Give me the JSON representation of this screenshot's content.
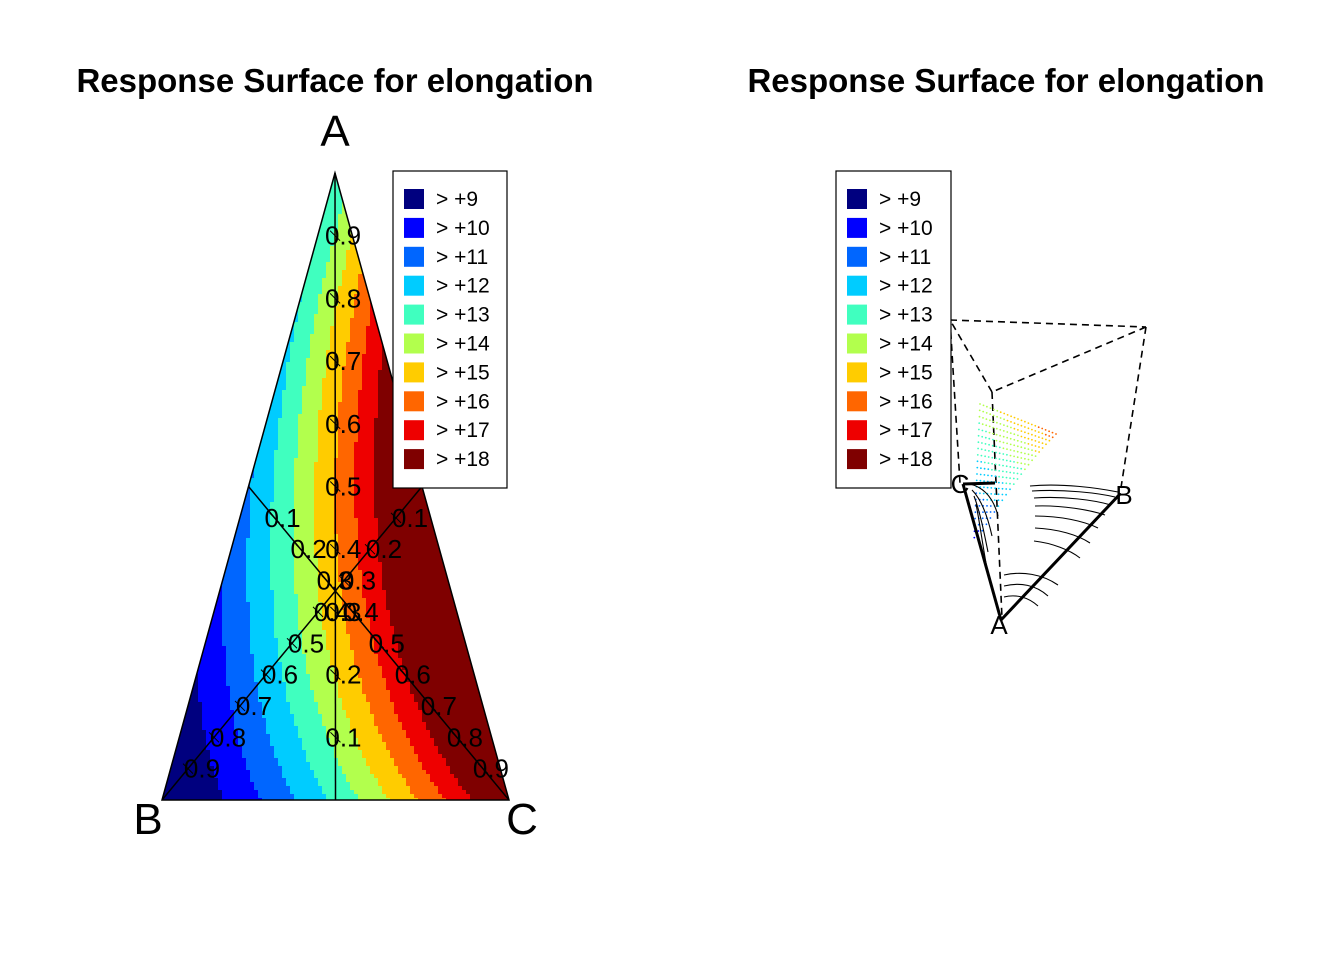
{
  "chart_data": [
    {
      "type": "ternary-contour",
      "title": "Response Surface for elongation",
      "vertices": {
        "top": "A",
        "left": "B",
        "right": "C"
      },
      "tick_labels": [
        "0.1",
        "0.2",
        "0.3",
        "0.4",
        "0.5",
        "0.6",
        "0.7",
        "0.8",
        "0.9"
      ],
      "ticks": [
        0.1,
        0.2,
        0.3,
        0.4,
        0.5,
        0.6,
        0.7,
        0.8,
        0.9
      ],
      "legend": {
        "placement": "top-right",
        "levels": [
          {
            "label": "> +9",
            "color": "#00007F"
          },
          {
            "label": "> +10",
            "color": "#0000FF"
          },
          {
            "label": "> +11",
            "color": "#0066FF"
          },
          {
            "label": "> +12",
            "color": "#00CCFF"
          },
          {
            "label": "> +13",
            "color": "#40FFBF"
          },
          {
            "label": "> +14",
            "color": "#B2FF4D"
          },
          {
            "label": "> +15",
            "color": "#FFCC00"
          },
          {
            "label": "> +16",
            "color": "#FF6600"
          },
          {
            "label": "> +17",
            "color": "#EE0000"
          },
          {
            "label": "> +18",
            "color": "#7F0000"
          }
        ]
      },
      "contour_thresholds": [
        9,
        10,
        11,
        12,
        13,
        14,
        15,
        16,
        17,
        18
      ]
    },
    {
      "type": "ternary-3d-surface",
      "title": "Response Surface for elongation",
      "vertices": {
        "front": "A",
        "right": "B",
        "left": "C"
      },
      "legend": {
        "placement": "top-left",
        "levels": [
          {
            "label": "> +9",
            "color": "#00007F"
          },
          {
            "label": "> +10",
            "color": "#0000FF"
          },
          {
            "label": "> +11",
            "color": "#0066FF"
          },
          {
            "label": "> +12",
            "color": "#00CCFF"
          },
          {
            "label": "> +13",
            "color": "#40FFBF"
          },
          {
            "label": "> +14",
            "color": "#B2FF4D"
          },
          {
            "label": "> +15",
            "color": "#FFCC00"
          },
          {
            "label": "> +16",
            "color": "#FF6600"
          },
          {
            "label": "> +17",
            "color": "#EE0000"
          },
          {
            "label": "> +18",
            "color": "#7F0000"
          }
        ]
      }
    }
  ]
}
